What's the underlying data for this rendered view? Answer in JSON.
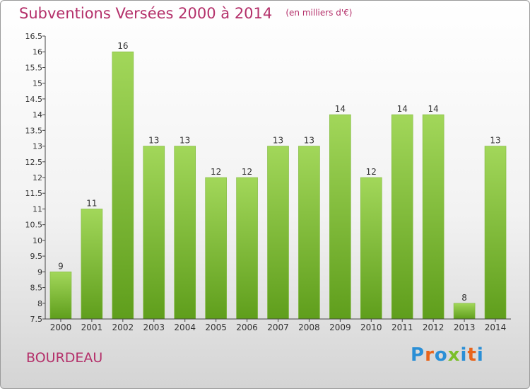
{
  "header": {
    "title": "Subventions Versées 2000 à 2014",
    "unit": "(en milliers d'€)"
  },
  "footer": {
    "commune": "BOURDEAU",
    "logo_text": "Proxiti"
  },
  "colors": {
    "title": "#b4306a",
    "bar_light": "#a2d75a",
    "bar_dark": "#5f9e1c",
    "axis": "#444444",
    "label": "#333333",
    "logo": [
      "#2a8fd6",
      "#e8641b",
      "#2a8fd6",
      "#7bbf2a",
      "#2a8fd6",
      "#e8641b",
      "#2a8fd6"
    ]
  },
  "chart_data": {
    "type": "bar",
    "title": "Subventions Versées 2000 à 2014",
    "xlabel": "",
    "ylabel": "",
    "categories": [
      "2000",
      "2001",
      "2002",
      "2003",
      "2004",
      "2005",
      "2006",
      "2007",
      "2008",
      "2009",
      "2010",
      "2011",
      "2012",
      "2013",
      "2014"
    ],
    "values": [
      9,
      11,
      16,
      13,
      13,
      12,
      12,
      13,
      13,
      14,
      12,
      14,
      14,
      8,
      13
    ],
    "ylim": [
      7.5,
      16.5
    ],
    "yticks": [
      "7.5",
      "8",
      "8.5",
      "9",
      "9.5",
      "10",
      "10.5",
      "11",
      "11.5",
      "12",
      "12.5",
      "13",
      "13.5",
      "14",
      "14.5",
      "15",
      "15.5",
      "16",
      "16.5"
    ],
    "grid": false,
    "data_labels": true
  }
}
